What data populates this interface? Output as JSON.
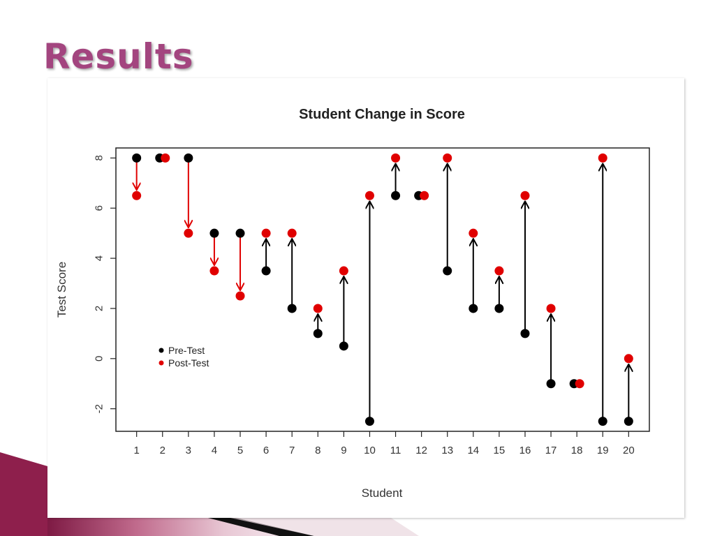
{
  "slide": {
    "title": "Results"
  },
  "colors": {
    "title": "#a3457f",
    "pre": "#000000",
    "post": "#e00000",
    "decrease_arrow": "#e00000",
    "increase_arrow": "#000000",
    "accent_band": "#8e1f4c"
  },
  "chart_data": {
    "type": "scatter",
    "title": "Student Change in Score",
    "xlabel": "Student",
    "ylabel": "Test Score",
    "categories": [
      "1",
      "2",
      "3",
      "4",
      "5",
      "6",
      "7",
      "8",
      "9",
      "10",
      "11",
      "12",
      "13",
      "14",
      "15",
      "16",
      "17",
      "18",
      "19",
      "20"
    ],
    "xlim": [
      0.2,
      20.8
    ],
    "ylim": [
      -2.9,
      8.4
    ],
    "yticks": [
      -2,
      0,
      2,
      4,
      6,
      8
    ],
    "ytick_labels": [
      "-2",
      "0",
      "2",
      "4",
      "6",
      "8"
    ],
    "grid": false,
    "legend_position": "bottom-left",
    "series": [
      {
        "name": "Pre-Test",
        "color": "#000000",
        "values": [
          8,
          8,
          8,
          5,
          5,
          3.5,
          2,
          1,
          0.5,
          -2.5,
          6.5,
          6.5,
          3.5,
          2,
          2,
          1,
          -1,
          -1,
          -2.5,
          -2.5
        ]
      },
      {
        "name": "Post-Test",
        "color": "#e00000",
        "values": [
          6.5,
          8,
          5,
          3.5,
          2.5,
          5,
          5,
          2,
          3.5,
          6.5,
          8,
          6.5,
          8,
          5,
          3.5,
          6.5,
          2,
          -1,
          8,
          0
        ]
      }
    ]
  }
}
